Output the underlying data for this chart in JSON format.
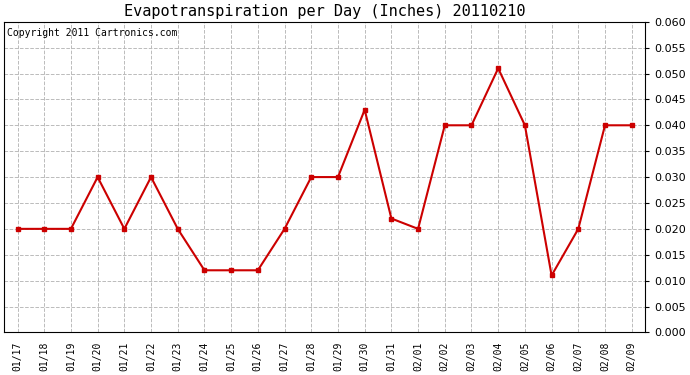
{
  "title": "Evapotranspiration per Day (Inches) 20110210",
  "copyright_text": "Copyright 2011 Cartronics.com",
  "dates": [
    "01/17",
    "01/18",
    "01/19",
    "01/20",
    "01/21",
    "01/22",
    "01/23",
    "01/24",
    "01/25",
    "01/26",
    "01/27",
    "01/28",
    "01/29",
    "01/30",
    "01/31",
    "02/01",
    "02/02",
    "02/03",
    "02/04",
    "02/05",
    "02/06",
    "02/07",
    "02/08",
    "02/09"
  ],
  "values": [
    0.02,
    0.02,
    0.02,
    0.03,
    0.02,
    0.03,
    0.02,
    0.012,
    0.012,
    0.012,
    0.02,
    0.03,
    0.03,
    0.043,
    0.022,
    0.02,
    0.04,
    0.04,
    0.051,
    0.04,
    0.011,
    0.02,
    0.04,
    0.04
  ],
  "line_color": "#cc0000",
  "marker": "s",
  "marker_size": 3,
  "ylim": [
    0.0,
    0.06
  ],
  "ytick_step": 0.005,
  "background_color": "#ffffff",
  "plot_bg_color": "#ffffff",
  "grid_color": "#bbbbbb",
  "title_fontsize": 11,
  "copyright_fontsize": 7,
  "tick_fontsize": 7,
  "ytick_fontsize": 8
}
